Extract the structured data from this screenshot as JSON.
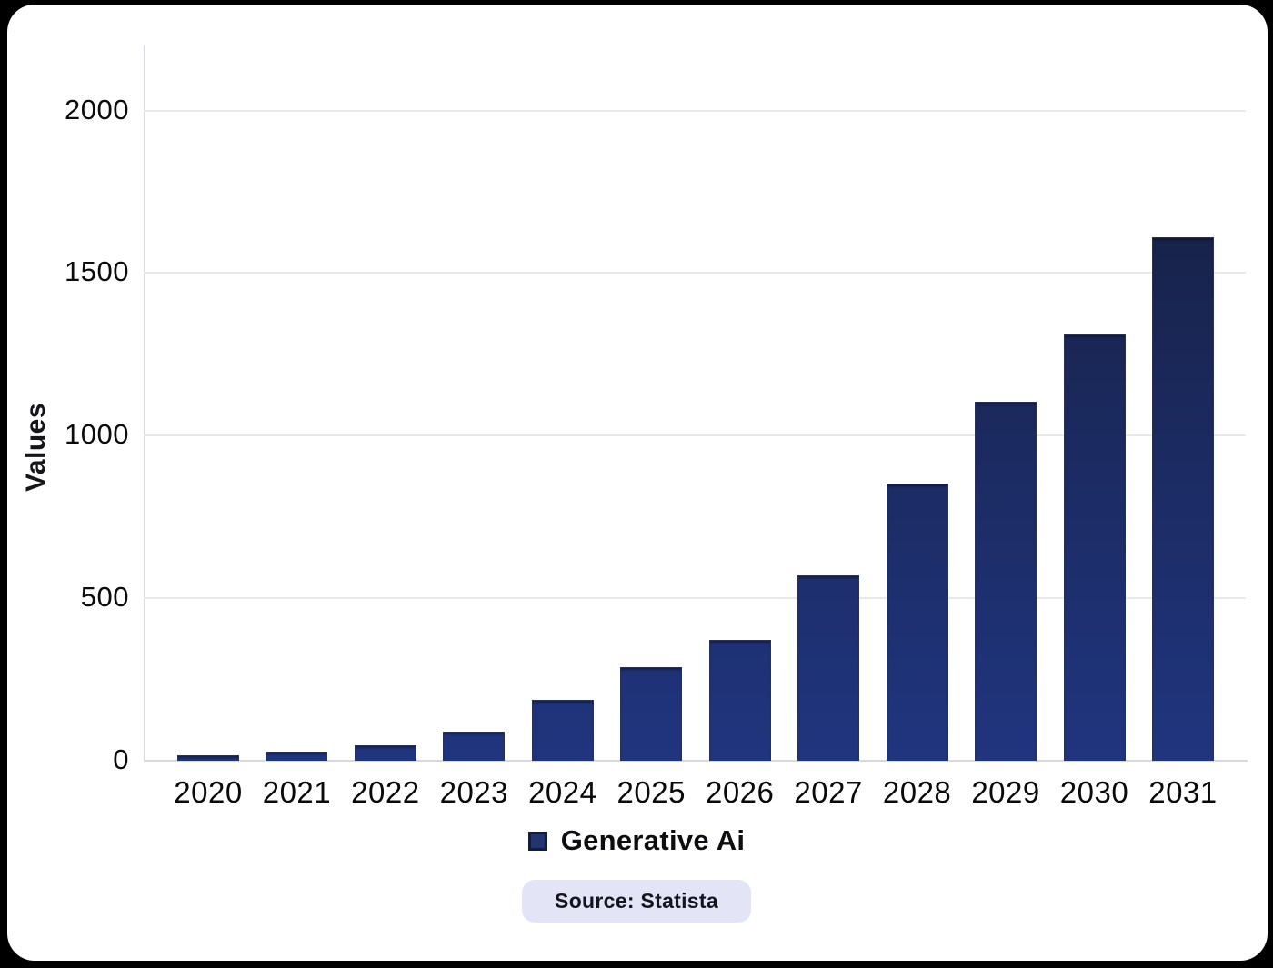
{
  "chart_data": {
    "type": "bar",
    "title": "",
    "xlabel": "",
    "ylabel": "Values",
    "categories": [
      "2020",
      "2021",
      "2022",
      "2023",
      "2024",
      "2025",
      "2026",
      "2027",
      "2028",
      "2029",
      "2030",
      "2031"
    ],
    "series": [
      {
        "name": "Generative Ai",
        "values": [
          18,
          28,
          48,
          90,
          186,
          287,
          372,
          570,
          853,
          1104,
          1311,
          1610
        ]
      }
    ],
    "ylim": [
      0,
      2200
    ],
    "yticks": [
      0,
      500,
      1000,
      1500,
      2000
    ],
    "grid": true,
    "legend_position": "bottom"
  },
  "source_badge": {
    "text": "Source: Statista"
  },
  "colors": {
    "page_background": "#000000",
    "card_background": "#ffffff",
    "bar_gradient_top": "#151c38",
    "bar_gradient_bottom": "#20357f",
    "bar_border": "#2a3258",
    "grid_line": "#e9e9ec",
    "axis_line": "#d9d9dd",
    "tick_text": "#0c0c0c",
    "legend_swatch_fill": "#21356f",
    "legend_swatch_border": "#121c3e",
    "badge_background": "#e3e4f6",
    "badge_text": "#15151f"
  }
}
